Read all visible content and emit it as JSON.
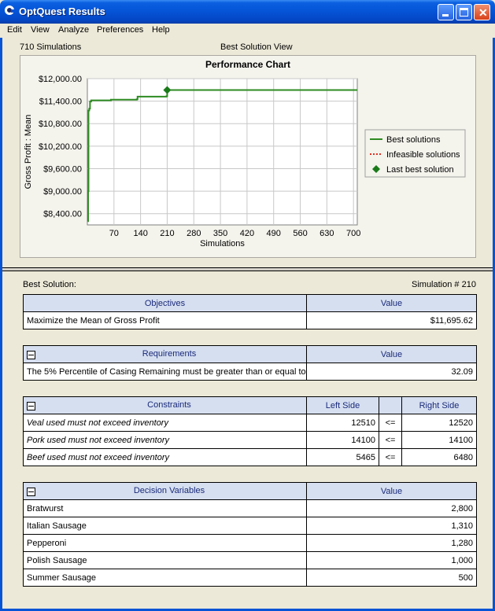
{
  "window": {
    "title": "OptQuest Results"
  },
  "menu": [
    "Edit",
    "View",
    "Analyze",
    "Preferences",
    "Help"
  ],
  "header": {
    "simulations": "710 Simulations",
    "view": "Best Solution View"
  },
  "chart_data": {
    "type": "line",
    "title": "Performance Chart",
    "xlabel": "Simulations",
    "ylabel": "Gross Profit : Mean",
    "x_ticks": [
      70,
      140,
      210,
      280,
      350,
      420,
      490,
      560,
      630,
      700
    ],
    "y_ticks": [
      "$8,400.00",
      "$9,000.00",
      "$9,600.00",
      "$10,200.00",
      "$10,800.00",
      "$11,400.00",
      "$12,000.00"
    ],
    "y_tick_values": [
      8400,
      9000,
      9600,
      10200,
      10800,
      11400,
      12000
    ],
    "xlim": [
      0,
      710
    ],
    "ylim": [
      8100,
      12000
    ],
    "grid": true,
    "legend_position": "right",
    "series": [
      {
        "name": "Best solutions",
        "color": "#2e8b22",
        "points": [
          [
            1,
            8200
          ],
          [
            2,
            9000
          ],
          [
            3,
            11150
          ],
          [
            5,
            11200
          ],
          [
            7,
            11390
          ],
          [
            10,
            11420
          ],
          [
            60,
            11420
          ],
          [
            62,
            11440
          ],
          [
            130,
            11450
          ],
          [
            132,
            11520
          ],
          [
            208,
            11530
          ],
          [
            210,
            11695.62
          ],
          [
            710,
            11695.62
          ]
        ]
      },
      {
        "name": "Infeasible solutions",
        "color": "#e03020",
        "points": []
      }
    ],
    "last_best": {
      "name": "Last best solution",
      "x": 210,
      "y": 11695.62,
      "color": "#1a7a1a"
    }
  },
  "best": {
    "label": "Best Solution:",
    "simulation": "Simulation # 210"
  },
  "objectives": {
    "header": "Objectives",
    "value_header": "Value",
    "rows": [
      {
        "name": "Maximize the Mean of Gross Profit",
        "value": "$11,695.62"
      }
    ]
  },
  "requirements": {
    "header": "Requirements",
    "value_header": "Value",
    "rows": [
      {
        "name": "The 5% Percentile of Casing Remaining must be greater than or equal to ...",
        "value": "32.09"
      }
    ]
  },
  "constraints": {
    "header": "Constraints",
    "left_header": "Left Side",
    "right_header": "Right Side",
    "rows": [
      {
        "name": "Veal used must not exceed inventory",
        "left": "12510",
        "op": "<=",
        "right": "12520"
      },
      {
        "name": "Pork used must not exceed inventory",
        "left": "14100",
        "op": "<=",
        "right": "14100"
      },
      {
        "name": "Beef used must not exceed inventory",
        "left": "5465",
        "op": "<=",
        "right": "6480"
      }
    ]
  },
  "decision_variables": {
    "header": "Decision Variables",
    "value_header": "Value",
    "rows": [
      {
        "name": "Bratwurst",
        "value": "2,800"
      },
      {
        "name": "Italian Sausage",
        "value": "1,310"
      },
      {
        "name": "Pepperoni",
        "value": "1,280"
      },
      {
        "name": "Polish Sausage",
        "value": "1,000"
      },
      {
        "name": "Summer Sausage",
        "value": "500"
      }
    ]
  }
}
